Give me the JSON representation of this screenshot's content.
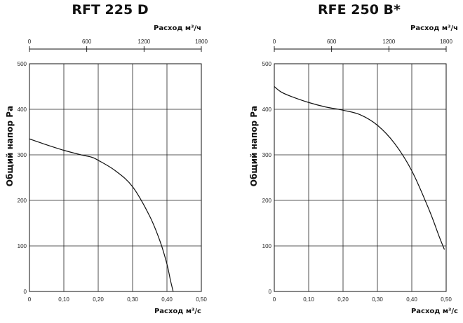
{
  "chart_data": [
    {
      "type": "line",
      "title": "RFT 225 D",
      "xlabel": "Расход м³/с",
      "ylabel": "Общий напор Ра",
      "x2label": "Расход м³/ч",
      "xlim": [
        0,
        0.5
      ],
      "ylim": [
        0,
        500
      ],
      "x2lim": [
        0,
        1800
      ],
      "x_ticks": [
        "0",
        "0,10",
        "0,20",
        "0,30",
        "0,40",
        "0,50"
      ],
      "y_ticks": [
        "0",
        "100",
        "200",
        "300",
        "400",
        "500"
      ],
      "x2_ticks": [
        "0",
        "600",
        "1200",
        "1800"
      ],
      "grid": true,
      "series": [
        {
          "x": [
            0,
            0.05,
            0.1,
            0.15,
            0.18,
            0.2,
            0.25,
            0.3,
            0.35,
            0.38,
            0.4,
            0.41,
            0.418
          ],
          "y": [
            335,
            322,
            310,
            300,
            295,
            288,
            265,
            230,
            165,
            110,
            60,
            25,
            0
          ]
        }
      ]
    },
    {
      "type": "line",
      "title": "RFE 250 B*",
      "xlabel": "Расход м³/с",
      "ylabel": "Общий напор Ра",
      "x2label": "Расход м³/ч",
      "xlim": [
        0,
        0.5
      ],
      "ylim": [
        0,
        500
      ],
      "x2lim": [
        0,
        1800
      ],
      "x_ticks": [
        "0",
        "0,10",
        "0,20",
        "0,30",
        "0,40",
        "0,50"
      ],
      "y_ticks": [
        "0",
        "100",
        "200",
        "300",
        "400",
        "500"
      ],
      "x2_ticks": [
        "0",
        "600",
        "1200",
        "1800"
      ],
      "grid": true,
      "series": [
        {
          "x": [
            0,
            0.02,
            0.05,
            0.1,
            0.15,
            0.2,
            0.25,
            0.3,
            0.35,
            0.4,
            0.45,
            0.48,
            0.495
          ],
          "y": [
            450,
            438,
            428,
            415,
            405,
            398,
            388,
            365,
            325,
            265,
            180,
            120,
            92
          ]
        }
      ]
    }
  ]
}
